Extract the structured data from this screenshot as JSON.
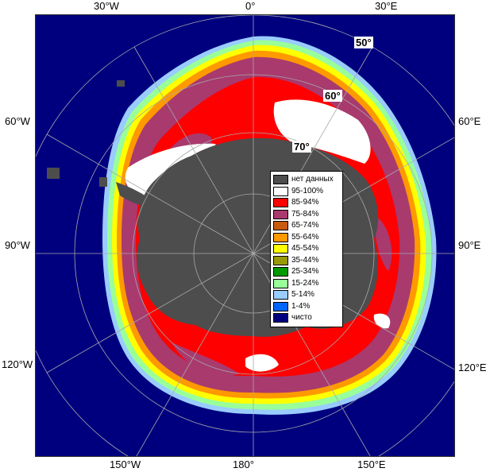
{
  "colors": {
    "open_water": "#00007f",
    "land": "#4d4d4d",
    "grid": "#a8a8a8"
  },
  "lon_labels": {
    "top_30w": "30°W",
    "top_0": "0°",
    "top_30e": "30°E",
    "left_60w": "60°W",
    "left_90w": "90°W",
    "left_120w": "120°W",
    "right_60e": "60°E",
    "right_90e": "90°E",
    "right_120e": "120°E",
    "bottom_150w": "150°W",
    "bottom_180": "180°",
    "bottom_150e": "150°E"
  },
  "lat_labels": {
    "lat50": "50°",
    "lat60": "60°",
    "lat70": "70°"
  },
  "legend": {
    "items": [
      {
        "label": "нет данных",
        "color": "#4d4d4d"
      },
      {
        "label": "95-100%",
        "color": "#ffffff"
      },
      {
        "label": "85-94%",
        "color": "#ff0000"
      },
      {
        "label": "75-84%",
        "color": "#a83a6e"
      },
      {
        "label": "65-74%",
        "color": "#c85a10"
      },
      {
        "label": "55-64%",
        "color": "#ff9900"
      },
      {
        "label": "45-54%",
        "color": "#ffff00"
      },
      {
        "label": "35-44%",
        "color": "#99990a"
      },
      {
        "label": "25-34%",
        "color": "#009900"
      },
      {
        "label": "15-24%",
        "color": "#99ff99"
      },
      {
        "label": "5-14%",
        "color": "#99ccff"
      },
      {
        "label": "1-4%",
        "color": "#0066ff"
      },
      {
        "label": "чисто",
        "color": "#00007f"
      }
    ]
  }
}
